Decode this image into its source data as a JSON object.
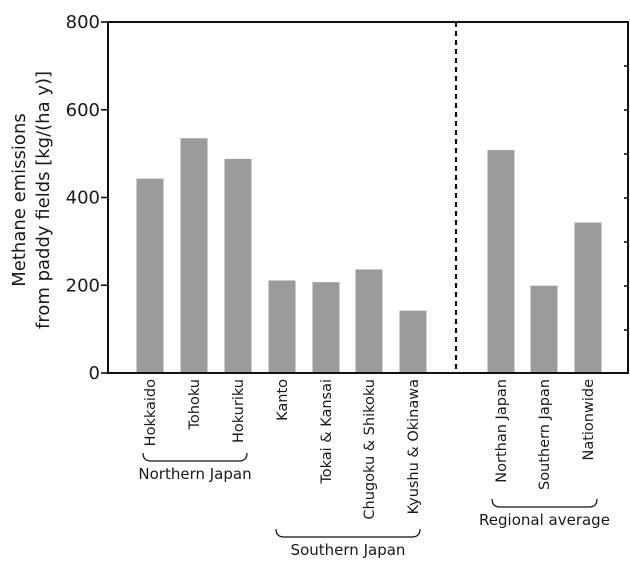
{
  "chart_data": {
    "type": "bar",
    "ylabel_lines": [
      "Methane emissions",
      "from paddy fields [kg/(ha y)]"
    ],
    "ylim": [
      0,
      800
    ],
    "yticks": [
      "0",
      "200",
      "400",
      "600",
      "800"
    ],
    "categories": [
      "Hokkaido",
      "Tohoku",
      "Hokuriku",
      "Kanto",
      "Tokai & Kansai",
      "Chugoku & Shikoku",
      "Kyushu & Okinawa",
      "Northan Japan",
      "Southern Japan",
      "Nationwide"
    ],
    "values": [
      443,
      535,
      488,
      211,
      207,
      236,
      142,
      508,
      199,
      343
    ],
    "groups": [
      {
        "label": "Northern Japan",
        "members": [
          "Hokkaido",
          "Tohoku",
          "Hokuriku"
        ]
      },
      {
        "label": "Southern Japan",
        "members": [
          "Kanto",
          "Tokai & Kansai",
          "Chugoku & Shikoku",
          "Kyushu & Okinawa"
        ]
      },
      {
        "label": "Regional average",
        "members": [
          "Northan Japan",
          "Southern Japan",
          "Nationwide"
        ]
      }
    ],
    "bar_color": "#9b9b9b",
    "divider": "dashed vertical line between Kyushu & Okinawa and Northan Japan",
    "grid": false,
    "legend": "none"
  }
}
